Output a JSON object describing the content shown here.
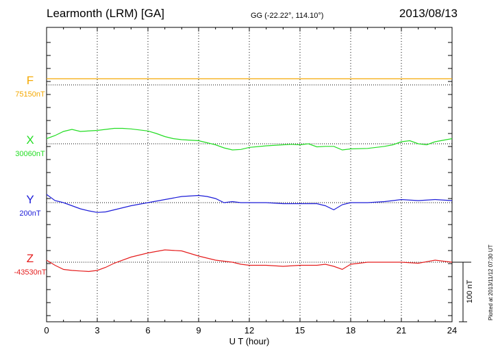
{
  "header": {
    "station": "Learmonth (LRM)  [GA]",
    "coords": "GG (-22.22°, 114.10°)",
    "date": "2013/08/13"
  },
  "stamp": "Plotted at 2013/11/12 07:30 UT",
  "chart_data": {
    "type": "line",
    "xlabel": "U T (hour)",
    "xlim": [
      0,
      24
    ],
    "x_ticks": [
      "0",
      "3",
      "6",
      "9",
      "12",
      "15",
      "18",
      "21",
      "24"
    ],
    "scale_bar": {
      "value": 100,
      "label": "100 nT"
    },
    "series": [
      {
        "name": "F",
        "baseline_label": "75150nT",
        "color": "#f5a800",
        "x": [
          0,
          3,
          6,
          9,
          12,
          15,
          18,
          21,
          24
        ],
        "y_offset_nT": [
          12,
          12,
          12,
          12,
          12,
          12,
          12,
          12,
          12
        ]
      },
      {
        "name": "X",
        "baseline_label": "30060nT",
        "color": "#22dd22",
        "x": [
          0,
          0.5,
          1,
          1.5,
          2,
          3,
          4,
          4.5,
          5,
          6,
          6.5,
          7,
          7.5,
          8,
          9,
          9.5,
          10,
          10.5,
          11,
          11.5,
          12,
          13,
          14,
          14.5,
          15,
          15.5,
          16,
          16.5,
          17,
          17.5,
          18,
          19,
          20,
          20.5,
          21,
          21.5,
          22,
          22.5,
          23,
          24
        ],
        "y_offset_nT": [
          10,
          16,
          24,
          28,
          24,
          26,
          30,
          30,
          29,
          25,
          20,
          14,
          10,
          8,
          6,
          2,
          -2,
          -8,
          -12,
          -11,
          -7,
          -4,
          -2,
          -1,
          -2,
          0,
          -6,
          -5,
          -5,
          -12,
          -10,
          -9,
          -5,
          -2,
          4,
          6,
          0,
          -2,
          4,
          10
        ]
      },
      {
        "name": "Y",
        "baseline_label": "200nT",
        "color": "#1a1ad8",
        "x": [
          0,
          0.5,
          1,
          1.5,
          2,
          2.5,
          3,
          3.5,
          4,
          5,
          6,
          7,
          8,
          9,
          9.5,
          10,
          10.5,
          11,
          11.5,
          12,
          13,
          14,
          15,
          16,
          16.5,
          17,
          17.5,
          18,
          19,
          20,
          21,
          22,
          23,
          24
        ],
        "y_offset_nT": [
          16,
          4,
          0,
          -6,
          -12,
          -16,
          -19,
          -18,
          -14,
          -6,
          0,
          6,
          12,
          14,
          12,
          8,
          0,
          2,
          0,
          0,
          0,
          -2,
          -2,
          -2,
          -6,
          -14,
          -4,
          0,
          0,
          2,
          6,
          4,
          6,
          4
        ]
      },
      {
        "name": "Z",
        "baseline_label": "-43530nT",
        "color": "#e51c1c",
        "x": [
          0,
          0.5,
          1,
          1.5,
          2,
          2.5,
          3,
          3.5,
          4,
          5,
          6,
          7,
          8,
          9,
          9.5,
          10,
          10.5,
          11,
          11.5,
          12,
          13,
          14,
          15,
          16,
          16.5,
          17,
          17.5,
          18,
          19,
          20,
          21,
          22,
          23,
          24
        ],
        "y_offset_nT": [
          4,
          -6,
          -14,
          -16,
          -17,
          -18,
          -16,
          -10,
          -2,
          10,
          18,
          24,
          22,
          12,
          8,
          4,
          2,
          0,
          -4,
          -6,
          -6,
          -8,
          -6,
          -6,
          -4,
          -8,
          -14,
          -4,
          0,
          0,
          0,
          -2,
          4,
          0
        ]
      }
    ]
  }
}
